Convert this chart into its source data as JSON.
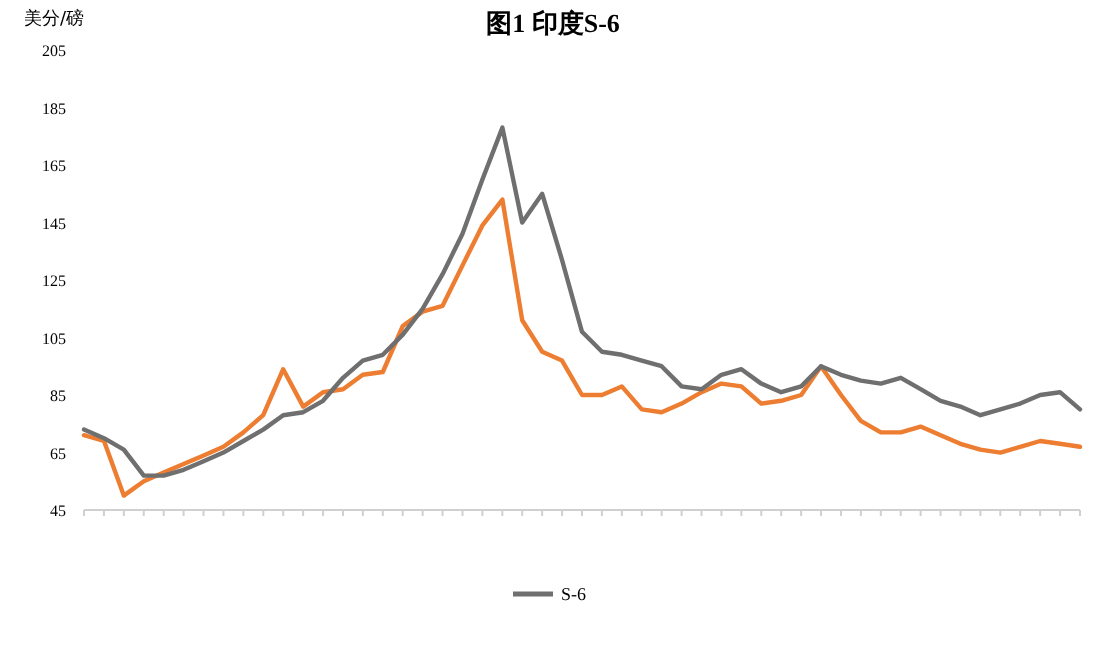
{
  "chart_data": {
    "type": "line",
    "title": "图1 印度S-6",
    "ylabel": "美分/磅",
    "categories": [
      null,
      null,
      null,
      null,
      null,
      null,
      null,
      null,
      null,
      null,
      null,
      null,
      null,
      null,
      null,
      null,
      null,
      null,
      null,
      null,
      null,
      null,
      null,
      null,
      null,
      null,
      null,
      null,
      null,
      null,
      null,
      null,
      null,
      null,
      null,
      null,
      null,
      null,
      null,
      null,
      null,
      null,
      null,
      null,
      null,
      null,
      null,
      null,
      null,
      null,
      null
    ],
    "ylim": [
      45,
      205
    ],
    "yticks": [
      45,
      65,
      85,
      105,
      125,
      145,
      165,
      185,
      205
    ],
    "tick_labels": "y",
    "grid": false,
    "legend": "bottom",
    "line_style": "solid",
    "marker": "none",
    "series": [
      {
        "color": "#ed7d31",
        "values": [
          71,
          69,
          50,
          55,
          58,
          61,
          64,
          67,
          72,
          78,
          94,
          81,
          86,
          87,
          92,
          93,
          109,
          114,
          116,
          130,
          144,
          153,
          111,
          100,
          97,
          85,
          85,
          88,
          80,
          79,
          82,
          86,
          89,
          88,
          82,
          83,
          85,
          95,
          85,
          76,
          72,
          72,
          74,
          71,
          68,
          66,
          65,
          67,
          69,
          68,
          67
        ]
      },
      {
        "name": "S-6",
        "color": "#6f6f6f",
        "values": [
          73,
          70,
          66,
          57,
          57,
          59,
          62,
          65,
          69,
          73,
          78,
          79,
          83,
          91,
          97,
          99,
          106,
          115,
          127,
          141,
          160,
          178,
          145,
          155,
          132,
          107,
          100,
          99,
          97,
          95,
          88,
          87,
          92,
          94,
          89,
          86,
          88,
          95,
          92,
          90,
          89,
          91,
          87,
          83,
          81,
          78,
          80,
          82,
          85,
          86,
          80
        ]
      }
    ]
  }
}
